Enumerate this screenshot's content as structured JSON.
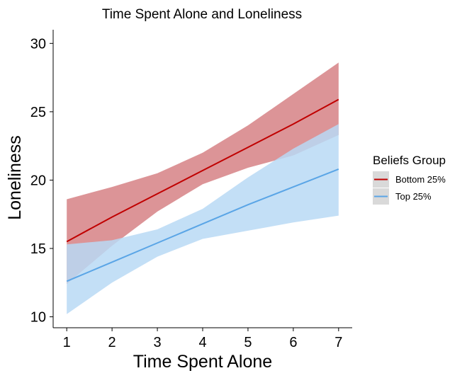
{
  "chart_data": {
    "type": "line",
    "title": "Time Spent Alone and Loneliness",
    "xlabel": "Time Spent Alone",
    "ylabel": "Loneliness",
    "xlim": [
      0.7,
      7.3
    ],
    "ylim": [
      9.2,
      31.0
    ],
    "x_ticks": [
      1,
      2,
      3,
      4,
      5,
      6,
      7
    ],
    "y_ticks": [
      10,
      15,
      20,
      25,
      30
    ],
    "grid": false,
    "legend": {
      "title": "Beliefs Group",
      "position": "right"
    },
    "x": [
      1,
      2,
      3,
      4,
      5,
      6,
      7
    ],
    "series": [
      {
        "name": "Bottom 25%",
        "color": "#c00000",
        "fill": "#d98b8e",
        "values": [
          15.5,
          17.3,
          19.0,
          20.7,
          22.4,
          24.1,
          25.9
        ],
        "lower": [
          12.4,
          15.2,
          17.7,
          19.7,
          20.9,
          21.8,
          23.3
        ],
        "upper": [
          18.6,
          19.5,
          20.5,
          22.0,
          24.0,
          26.3,
          28.6
        ]
      },
      {
        "name": "Top 25%",
        "color": "#5aa5e6",
        "fill": "#b9d9f4",
        "values": [
          12.6,
          14.0,
          15.4,
          16.8,
          18.2,
          19.5,
          20.8
        ],
        "lower": [
          10.2,
          12.5,
          14.4,
          15.7,
          16.3,
          16.9,
          17.4
        ],
        "upper": [
          15.3,
          15.6,
          16.4,
          17.9,
          20.2,
          22.3,
          24.1
        ]
      }
    ]
  }
}
